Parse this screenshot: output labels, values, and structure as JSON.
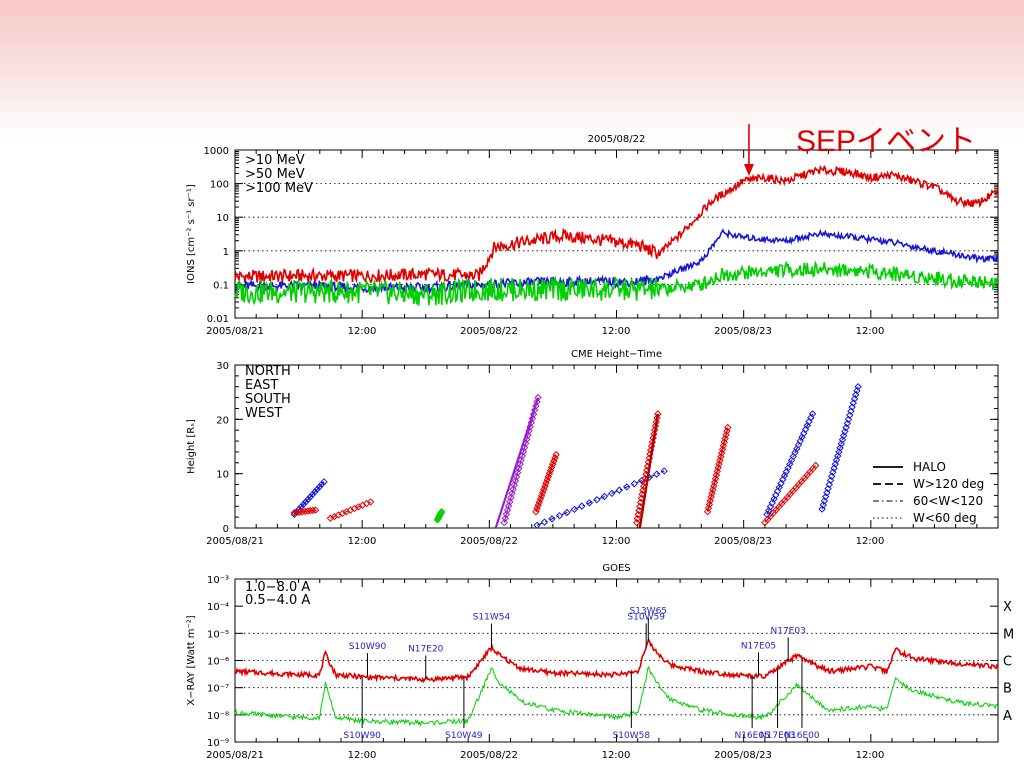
{
  "annotation": {
    "label": "SEPイベント",
    "color": "#e00000"
  },
  "time_labels": [
    "2005/08/21",
    "12:00",
    "2005/08/22",
    "12:00",
    "2005/08/23",
    "12:00"
  ],
  "colors": {
    "red": "#e00000",
    "blue": "#1818d0",
    "green": "#00d000",
    "purple": "#9a20c8",
    "darkred": "#b00000",
    "event_label": "#2424c8"
  },
  "chart_data": [
    {
      "type": "line",
      "title": "2005/08/22",
      "ylabel": "IONS [cm⁻² s⁻¹ sr⁻¹]",
      "yscale": "log",
      "ylim": [
        0.01,
        1000
      ],
      "y_ticks": [
        "1000",
        "100",
        "10",
        "1",
        "0.1",
        "0.01"
      ],
      "x_unit": "hours since 2005/08/21 00:00",
      "xlim": [
        0,
        72
      ],
      "legend_position": "top-left",
      "series": [
        {
          "name": ">10 MeV",
          "color": "#e00000",
          "x": [
            0,
            6,
            12,
            18,
            23,
            24.5,
            28,
            31,
            35,
            38,
            40,
            42,
            45,
            48,
            50,
            52,
            55,
            58,
            60,
            62,
            64,
            66,
            68,
            70,
            72
          ],
          "y": [
            0.17,
            0.18,
            0.18,
            0.2,
            0.18,
            1.3,
            2,
            2.8,
            2,
            1.5,
            0.8,
            3,
            30,
            120,
            150,
            120,
            250,
            220,
            150,
            180,
            120,
            80,
            30,
            25,
            60
          ]
        },
        {
          "name": ">50 MeV",
          "color": "#1818d0",
          "x": [
            0,
            6,
            12,
            18,
            24,
            30,
            36,
            38,
            40,
            44,
            46,
            48,
            50,
            52,
            55,
            58,
            62,
            66,
            70,
            72
          ],
          "y": [
            0.09,
            0.09,
            0.08,
            0.08,
            0.1,
            0.12,
            0.12,
            0.12,
            0.15,
            0.5,
            3.5,
            2.5,
            2.2,
            2,
            3.2,
            2.6,
            1.8,
            1,
            0.6,
            0.55
          ]
        },
        {
          "name": ">100 MeV",
          "color": "#00d000",
          "x": [
            0,
            6,
            12,
            18,
            24,
            30,
            36,
            40,
            44,
            46,
            48,
            52,
            56,
            60,
            64,
            68,
            72
          ],
          "y": [
            0.06,
            0.06,
            0.06,
            0.05,
            0.07,
            0.07,
            0.07,
            0.07,
            0.1,
            0.2,
            0.22,
            0.27,
            0.28,
            0.25,
            0.18,
            0.13,
            0.12
          ]
        }
      ]
    },
    {
      "type": "scatter",
      "title": "CME Height−Time",
      "ylabel": "Height [Rₛ]",
      "ylim": [
        0,
        30
      ],
      "y_ticks": [
        "30",
        "20",
        "10",
        "0"
      ],
      "x_unit": "hours since 2005/08/21 00:00",
      "xlim": [
        0,
        72
      ],
      "legend_position": "top-left",
      "style_legend_position": "bottom-right",
      "categories": [
        "NORTH",
        "EAST",
        "SOUTH",
        "WEST"
      ],
      "style_legend": [
        "HALO",
        "W>120 deg",
        "60<W<120",
        "W<60 deg"
      ],
      "series": [
        {
          "name": "EAST",
          "color": "#1818d0",
          "x": [
            5.6,
            8.4
          ],
          "y": [
            2.5,
            8.5
          ]
        },
        {
          "name": "WEST",
          "color": "#e00000",
          "x": [
            5.6,
            7.6
          ],
          "y": [
            2.8,
            3.3
          ]
        },
        {
          "name": "WEST",
          "color": "#e00000",
          "x": [
            9.0,
            12.8
          ],
          "y": [
            1.8,
            4.8
          ]
        },
        {
          "name": "NORTH",
          "color": "#00d000",
          "x": [
            19.1,
            19.5
          ],
          "y": [
            1.5,
            3.0
          ]
        },
        {
          "name": "SOUTH",
          "color": "#9a20c8",
          "x": [
            25.4,
            28.6
          ],
          "y": [
            1.0,
            24.0
          ]
        },
        {
          "name": "WEST",
          "color": "#e00000",
          "x": [
            28.4,
            30.3
          ],
          "y": [
            3.0,
            13.5
          ]
        },
        {
          "name": "EAST",
          "color": "#1818d0",
          "x": [
            28.5,
            40.5
          ],
          "y": [
            0.5,
            10.5
          ]
        },
        {
          "name": "WEST",
          "color": "#e00000",
          "x": [
            37.9,
            39.9
          ],
          "y": [
            1.0,
            21.0
          ]
        },
        {
          "name": "WEST",
          "color": "#e00000",
          "x": [
            44.6,
            46.5
          ],
          "y": [
            3.0,
            18.5
          ]
        },
        {
          "name": "WEST",
          "color": "#e00000",
          "x": [
            50.0,
            54.8
          ],
          "y": [
            1.0,
            11.5
          ]
        },
        {
          "name": "EAST",
          "color": "#1818d0",
          "x": [
            50.2,
            54.5
          ],
          "y": [
            2.5,
            21.0
          ]
        },
        {
          "name": "EAST",
          "color": "#1818d0",
          "x": [
            55.4,
            58.8
          ],
          "y": [
            3.5,
            26.0
          ]
        }
      ]
    },
    {
      "type": "line",
      "title": "GOES",
      "ylabel": "X−RAY [Watt m⁻²]",
      "yscale": "log",
      "ylim": [
        1e-09,
        0.001
      ],
      "y_ticks": [
        "10⁻³",
        "10⁻⁴",
        "10⁻⁵",
        "10⁻⁶",
        "10⁻⁷",
        "10⁻⁸",
        "10⁻⁹"
      ],
      "flare_classes": [
        "X",
        "M",
        "C",
        "B",
        "A"
      ],
      "x_unit": "hours since 2005/08/21 00:00",
      "xlim": [
        0,
        72
      ],
      "legend_position": "top-left",
      "series": [
        {
          "name": "1.0−8.0 A",
          "color": "#e00000",
          "x": [
            0,
            6,
            8,
            8.5,
            9.5,
            12,
            18,
            22,
            24.2,
            25,
            27,
            30,
            36,
            38,
            39,
            39.8,
            41,
            44,
            47,
            50,
            53,
            56,
            60,
            61.5,
            62.3,
            64,
            68,
            72
          ],
          "y": [
            4e-07,
            3e-07,
            3e-07,
            1.8e-06,
            3e-07,
            2.5e-07,
            2e-07,
            2.5e-07,
            3e-06,
            1.5e-06,
            5e-07,
            3.5e-07,
            3e-07,
            4e-07,
            5e-06,
            2e-06,
            7e-07,
            4e-07,
            3e-07,
            2.5e-07,
            1.5e-06,
            4e-07,
            6e-07,
            4e-07,
            2.5e-06,
            1.2e-06,
            8e-07,
            6e-07
          ]
        },
        {
          "name": "0.5−4.0 A",
          "color": "#00d000",
          "x": [
            0,
            6,
            8,
            8.5,
            9.5,
            12,
            18,
            22,
            24.2,
            25,
            27,
            30,
            36,
            38,
            39,
            39.8,
            41,
            44,
            47,
            50,
            53,
            56,
            60,
            61.5,
            62.3,
            64,
            68,
            72
          ],
          "y": [
            1.2e-08,
            8e-09,
            8e-09,
            1.5e-07,
            8e-09,
            6e-09,
            5e-09,
            6e-09,
            5e-07,
            1.5e-07,
            3e-08,
            1.5e-08,
            8e-09,
            1.2e-08,
            5e-07,
            1.5e-07,
            4e-08,
            1.5e-08,
            1e-08,
            8e-09,
            1.2e-07,
            1.5e-08,
            2e-08,
            1.5e-08,
            2e-07,
            8e-08,
            3e-08,
            2e-08
          ]
        }
      ],
      "events": [
        {
          "label": "S11W54",
          "x": 24.2,
          "side": "above"
        },
        {
          "label": "S13W65",
          "x": 39.0,
          "side": "above"
        },
        {
          "label": "S10W90",
          "x": 12.5,
          "side": "above"
        },
        {
          "label": "N17E20",
          "x": 18.0,
          "side": "above"
        },
        {
          "label": "S10W59",
          "x": 38.8,
          "side": "above"
        },
        {
          "label": "N17E05",
          "x": 49.4,
          "side": "above"
        },
        {
          "label": "N17E03",
          "x": 52.2,
          "side": "above"
        },
        {
          "label": "S10W90",
          "x": 12.0,
          "side": "below"
        },
        {
          "label": "S10W49",
          "x": 21.6,
          "side": "below"
        },
        {
          "label": "S10W58",
          "x": 37.4,
          "side": "below"
        },
        {
          "label": "N16E05",
          "x": 48.8,
          "side": "below"
        },
        {
          "label": "N17E03",
          "x": 51.2,
          "side": "below"
        },
        {
          "label": "N16E00",
          "x": 53.5,
          "side": "below"
        }
      ]
    }
  ]
}
